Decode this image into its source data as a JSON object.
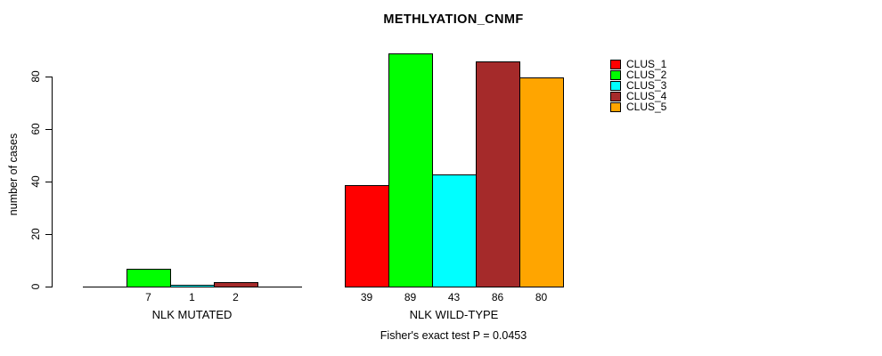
{
  "title": "METHLYATION_CNMF",
  "y_axis": {
    "label": "number of cases",
    "ticks": [
      "0",
      "20",
      "40",
      "60",
      "80"
    ]
  },
  "footer": "Fisher's exact test P = 0.0453",
  "chart_data": {
    "type": "bar",
    "title": "METHLYATION_CNMF",
    "ylabel": "number of cases",
    "xlabel": "",
    "ylim": [
      0,
      89
    ],
    "yticks": [
      0,
      20,
      40,
      60,
      80
    ],
    "grid": false,
    "legend_position": "top-right",
    "series_names": [
      "CLUS_1",
      "CLUS_2",
      "CLUS_3",
      "CLUS_4",
      "CLUS_5"
    ],
    "series_colors": [
      "#ff0000",
      "#00ff00",
      "#00ffff",
      "#a52a2a",
      "#ffa500"
    ],
    "groups": [
      {
        "label": "NLK MUTATED",
        "values": [
          0,
          7,
          1,
          2,
          0
        ],
        "bar_labels": [
          "",
          "7",
          "1",
          "2",
          ""
        ]
      },
      {
        "label": "NLK WILD-TYPE",
        "values": [
          39,
          89,
          43,
          86,
          80
        ],
        "bar_labels": [
          "39",
          "89",
          "43",
          "86",
          "80"
        ]
      }
    ],
    "annotation": "Fisher's exact test P = 0.0453"
  }
}
